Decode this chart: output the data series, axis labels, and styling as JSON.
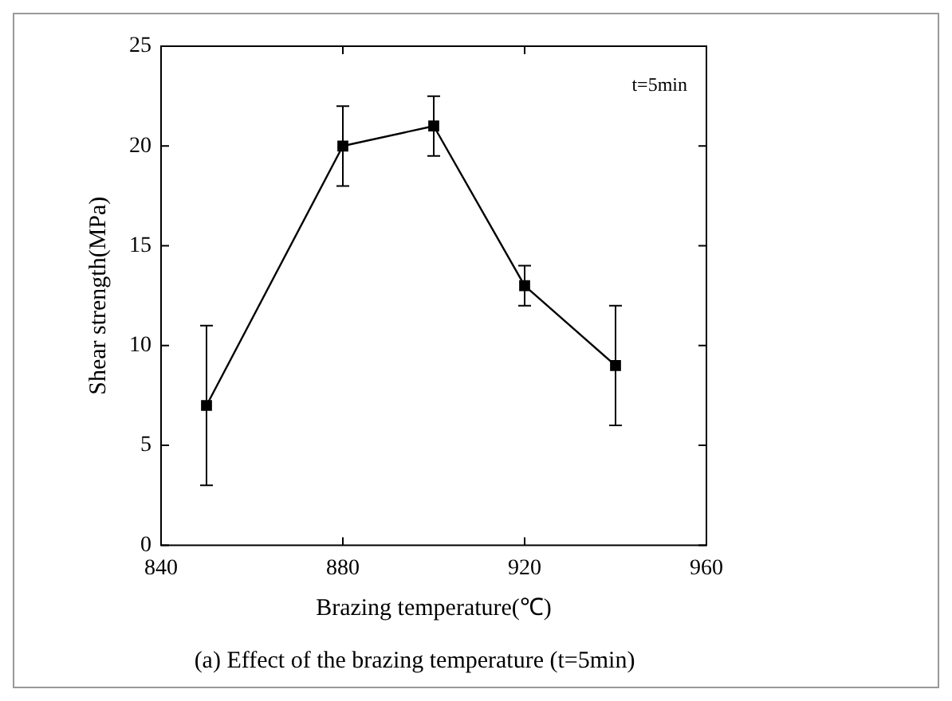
{
  "chart_data": {
    "type": "line",
    "xlabel": "Brazing temperature(℃)",
    "ylabel": "Shear strength(MPa)",
    "annotations": [
      "t=5min",
      "(a) Effect of the brazing temperature (t=5min)"
    ],
    "x": [
      850,
      880,
      900,
      920,
      940
    ],
    "series": [
      {
        "color": "#000000",
        "values": [
          7,
          20,
          21,
          13,
          9
        ],
        "errors": [
          [
            3,
            11
          ],
          [
            18,
            22
          ],
          [
            19.5,
            22.5
          ],
          [
            12,
            14
          ],
          [
            6,
            12
          ]
        ]
      }
    ],
    "xlim": [
      840,
      960
    ],
    "xticks": [
      840,
      880,
      920,
      960
    ],
    "ylim": [
      0,
      25
    ],
    "yticks": [
      0,
      5,
      10,
      15,
      20,
      25
    ],
    "grid": false,
    "legend": false,
    "marker": "square",
    "line_style": "solid"
  }
}
